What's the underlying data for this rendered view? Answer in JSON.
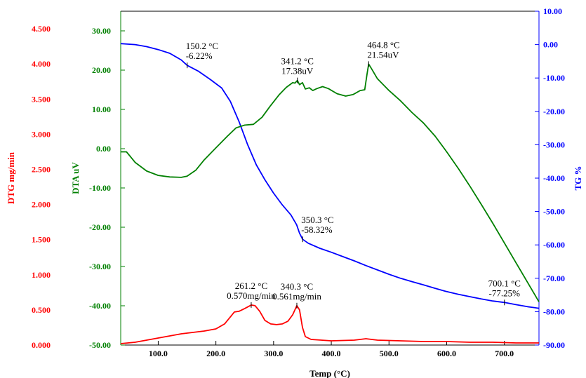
{
  "chart_data": {
    "type": "line",
    "title": "",
    "xlabel": "Temp (°C)",
    "xlim": [
      35,
      760
    ],
    "x_ticks": [
      {
        "value": 100,
        "label": "100.0"
      },
      {
        "value": 200,
        "label": "200.0"
      },
      {
        "value": 300,
        "label": "300.0"
      },
      {
        "value": 400,
        "label": "400.0"
      },
      {
        "value": 500,
        "label": "500.0"
      },
      {
        "value": 600,
        "label": "600.0"
      },
      {
        "value": 700,
        "label": "700.0"
      }
    ],
    "axes": {
      "dtg": {
        "label": "DTG mg/min",
        "color": "#ff0000",
        "lim": [
          0.0,
          4.75
        ],
        "ticks": [
          "0.000",
          "0.500",
          "1.000",
          "1.500",
          "2.000",
          "2.500",
          "3.000",
          "3.500",
          "4.000",
          "4.500"
        ],
        "tick_values": [
          0,
          0.5,
          1,
          1.5,
          2,
          2.5,
          3,
          3.5,
          4,
          4.5
        ]
      },
      "dta": {
        "label": "DTA uV",
        "color": "#008000",
        "lim": [
          -50.0,
          35.0
        ],
        "ticks": [
          "-50.00",
          "-40.00",
          "-30.00",
          "-20.00",
          "-10.00",
          "0.00",
          "10.00",
          "20.00",
          "30.00"
        ],
        "tick_values": [
          -50,
          -40,
          -30,
          -20,
          -10,
          0,
          10,
          20,
          30
        ]
      },
      "tg": {
        "label": "TG %",
        "color": "#0000ff",
        "lim": [
          -90.0,
          10.0
        ],
        "ticks": [
          "-90.00",
          "-80.00",
          "-70.00",
          "-60.00",
          "-50.00",
          "-40.00",
          "-30.00",
          "-20.00",
          "-10.00",
          "0.00",
          "10.00"
        ],
        "tick_values": [
          -90,
          -80,
          -70,
          -60,
          -50,
          -40,
          -30,
          -20,
          -10,
          0,
          10
        ]
      }
    },
    "series": [
      {
        "name": "TG",
        "axis": "tg",
        "color": "#0000ff",
        "points": [
          [
            35,
            0.3
          ],
          [
            60,
            0.0
          ],
          [
            80,
            -0.6
          ],
          [
            100,
            -1.5
          ],
          [
            120,
            -2.6
          ],
          [
            140,
            -4.6
          ],
          [
            150.2,
            -6.22
          ],
          [
            170,
            -8.0
          ],
          [
            190,
            -10.4
          ],
          [
            210,
            -13.0
          ],
          [
            225,
            -17.0
          ],
          [
            240,
            -23.0
          ],
          [
            255,
            -30.0
          ],
          [
            270,
            -36.0
          ],
          [
            285,
            -40.5
          ],
          [
            300,
            -44.5
          ],
          [
            315,
            -48.0
          ],
          [
            330,
            -51.0
          ],
          [
            340,
            -54.0
          ],
          [
            345,
            -56.5
          ],
          [
            350.3,
            -58.32
          ],
          [
            360,
            -59.5
          ],
          [
            380,
            -61.0
          ],
          [
            400,
            -62.2
          ],
          [
            420,
            -63.5
          ],
          [
            440,
            -64.8
          ],
          [
            460,
            -66.2
          ],
          [
            480,
            -67.5
          ],
          [
            500,
            -68.8
          ],
          [
            520,
            -70.0
          ],
          [
            540,
            -71.0
          ],
          [
            560,
            -72.0
          ],
          [
            580,
            -73.0
          ],
          [
            600,
            -74.0
          ],
          [
            620,
            -74.8
          ],
          [
            640,
            -75.5
          ],
          [
            660,
            -76.2
          ],
          [
            680,
            -76.8
          ],
          [
            700.1,
            -77.25
          ],
          [
            720,
            -77.9
          ],
          [
            740,
            -78.5
          ],
          [
            760,
            -79.0
          ]
        ]
      },
      {
        "name": "DTA",
        "axis": "dta",
        "color": "#008000",
        "points": [
          [
            35,
            -0.8
          ],
          [
            45,
            -0.8
          ],
          [
            60,
            -3.5
          ],
          [
            80,
            -5.7
          ],
          [
            100,
            -6.8
          ],
          [
            120,
            -7.2
          ],
          [
            140,
            -7.3
          ],
          [
            150,
            -7.0
          ],
          [
            165,
            -5.5
          ],
          [
            180,
            -2.8
          ],
          [
            200,
            0.2
          ],
          [
            220,
            3.2
          ],
          [
            235,
            5.3
          ],
          [
            250,
            6.0
          ],
          [
            265,
            6.2
          ],
          [
            280,
            8.0
          ],
          [
            295,
            11.0
          ],
          [
            310,
            13.8
          ],
          [
            322,
            15.6
          ],
          [
            333,
            16.8
          ],
          [
            337,
            16.7
          ],
          [
            341.2,
            17.38
          ],
          [
            345,
            16.3
          ],
          [
            350,
            16.8
          ],
          [
            355,
            15.2
          ],
          [
            362,
            15.5
          ],
          [
            368,
            14.8
          ],
          [
            375,
            15.3
          ],
          [
            385,
            15.8
          ],
          [
            395,
            15.3
          ],
          [
            410,
            14.0
          ],
          [
            425,
            13.4
          ],
          [
            438,
            13.8
          ],
          [
            450,
            14.8
          ],
          [
            458,
            15.0
          ],
          [
            462,
            19.0
          ],
          [
            464.8,
            21.54
          ],
          [
            470,
            20.3
          ],
          [
            480,
            17.8
          ],
          [
            500,
            14.8
          ],
          [
            520,
            12.2
          ],
          [
            540,
            9.2
          ],
          [
            560,
            6.5
          ],
          [
            580,
            3.2
          ],
          [
            600,
            -0.8
          ],
          [
            620,
            -5.0
          ],
          [
            640,
            -9.5
          ],
          [
            660,
            -14.2
          ],
          [
            680,
            -19.0
          ],
          [
            700,
            -24.0
          ],
          [
            720,
            -29.0
          ],
          [
            740,
            -34.0
          ],
          [
            760,
            -39.0
          ]
        ]
      },
      {
        "name": "DTG",
        "axis": "dtg",
        "color": "#ff0000",
        "points": [
          [
            35,
            0.02
          ],
          [
            60,
            0.04
          ],
          [
            80,
            0.07
          ],
          [
            100,
            0.1
          ],
          [
            120,
            0.13
          ],
          [
            140,
            0.16
          ],
          [
            160,
            0.18
          ],
          [
            180,
            0.2
          ],
          [
            200,
            0.23
          ],
          [
            215,
            0.3
          ],
          [
            225,
            0.4
          ],
          [
            232,
            0.47
          ],
          [
            240,
            0.48
          ],
          [
            250,
            0.52
          ],
          [
            261.2,
            0.57
          ],
          [
            268,
            0.56
          ],
          [
            276,
            0.48
          ],
          [
            285,
            0.35
          ],
          [
            295,
            0.3
          ],
          [
            305,
            0.29
          ],
          [
            315,
            0.3
          ],
          [
            325,
            0.34
          ],
          [
            333,
            0.43
          ],
          [
            340.3,
            0.561
          ],
          [
            345,
            0.5
          ],
          [
            350,
            0.25
          ],
          [
            355,
            0.12
          ],
          [
            365,
            0.08
          ],
          [
            400,
            0.06
          ],
          [
            440,
            0.07
          ],
          [
            460,
            0.09
          ],
          [
            480,
            0.07
          ],
          [
            520,
            0.06
          ],
          [
            560,
            0.05
          ],
          [
            600,
            0.05
          ],
          [
            640,
            0.04
          ],
          [
            680,
            0.04
          ],
          [
            720,
            0.03
          ],
          [
            760,
            0.03
          ]
        ]
      }
    ],
    "annotations": [
      {
        "series": "TG",
        "x": 150.2,
        "y": -6.22,
        "line1": "150.2 °C",
        "line2": "-6.22%",
        "anchor": "start"
      },
      {
        "series": "DTA",
        "x": 341.2,
        "y": 17.38,
        "line1": "341.2 °C",
        "line2": "17.38uV",
        "anchor": "middle"
      },
      {
        "series": "DTA",
        "x": 464.8,
        "y": 21.54,
        "line1": "464.8 °C",
        "line2": "21.54uV",
        "anchor": "start"
      },
      {
        "series": "TG",
        "x": 350.3,
        "y": -58.32,
        "line1": "350.3 °C",
        "line2": "-58.32%",
        "anchor": "start"
      },
      {
        "series": "DTG",
        "x": 261.2,
        "y": 0.57,
        "line1": "261.2 °C",
        "line2": "0.570mg/min",
        "anchor": "middle"
      },
      {
        "series": "DTG",
        "x": 340.3,
        "y": 0.561,
        "line1": "340.3 °C",
        "line2": "0.561mg/min",
        "anchor": "middle"
      },
      {
        "series": "TG",
        "x": 700.1,
        "y": -77.25,
        "line1": "700.1 °C",
        "line2": "-77.25%",
        "anchor": "middle"
      }
    ],
    "grid": false,
    "legend": "none"
  }
}
